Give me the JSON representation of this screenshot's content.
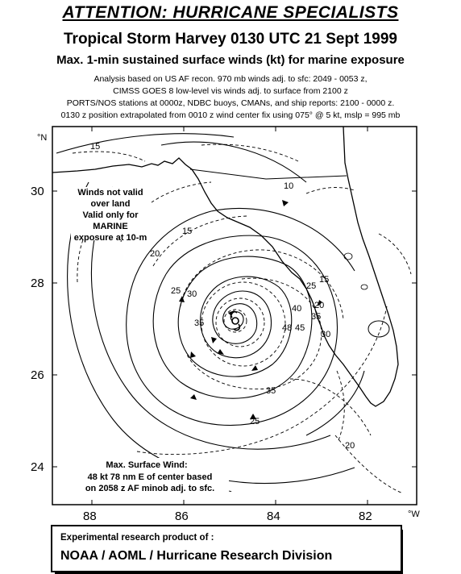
{
  "header": {
    "attention": "ATTENTION: HURRICANE SPECIALISTS",
    "title": "Tropical Storm Harvey 0130 UTC 21 Sept 1999",
    "subtitle": "Max. 1-min sustained surface winds (kt) for marine exposure"
  },
  "notes": {
    "line1": "Analysis based on US AF recon. 970 mb winds adj. to sfc: 2049 - 0053 z,",
    "line2": "CIMSS GOES 8 low-level vis winds adj. to surface from 2100 z",
    "line3": "PORTS/NOS stations at 0000z, NDBC buoys, CMANs, and ship reports: 2100 - 0000 z.",
    "line4": "0130 z position extrapolated from 0010 z wind center fix using  075° @ 5 kt, mslp = 995 mb"
  },
  "map": {
    "lat_unit": "°N",
    "lon_unit": "°W",
    "lat_labels": [
      "30",
      "28",
      "26",
      "24"
    ],
    "lon_labels": [
      "88",
      "86",
      "84",
      "82"
    ],
    "contour_labels": [
      "15",
      "10",
      "15",
      "20",
      "25",
      "30",
      "35",
      "40",
      "45",
      "48",
      "20",
      "15",
      "25",
      "35",
      "25",
      "20",
      "30",
      "35"
    ],
    "land_note": [
      "Winds not valid",
      "over land",
      "Valid only for",
      "MARINE",
      "exposure at 10-m"
    ],
    "max_wind_note": [
      "Max. Surface Wind:",
      "48 kt  78 nm E of center based",
      "on 2058 z AF minob adj. to sfc."
    ],
    "colors": {
      "ink": "#000000",
      "background": "#ffffff"
    }
  },
  "footer": {
    "line1": "Experimental research product of :",
    "line2": "NOAA / AOML / Hurricane Research Division"
  }
}
